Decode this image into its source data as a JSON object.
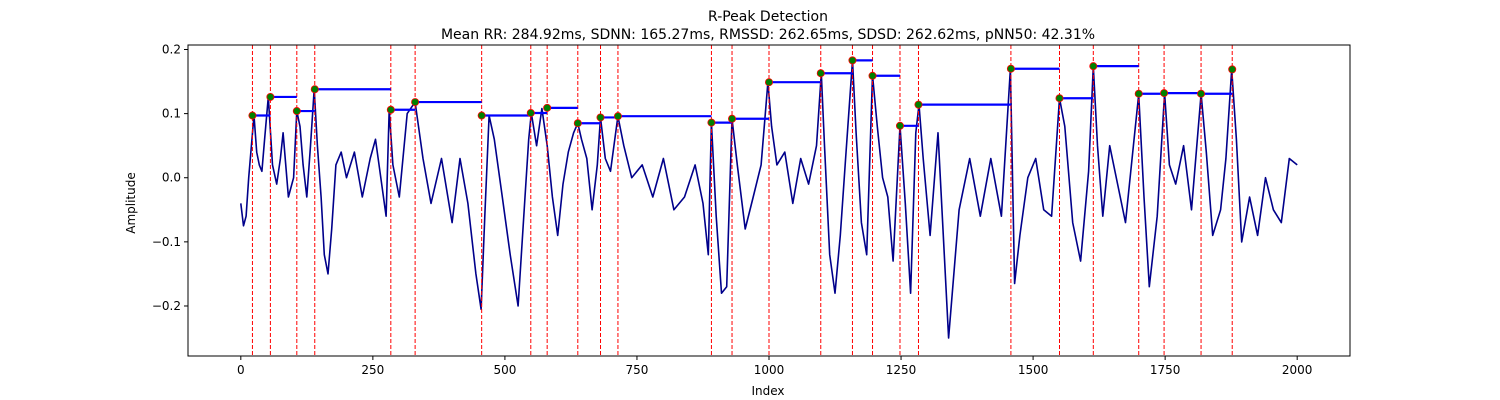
{
  "chart_data": {
    "type": "line",
    "title": "R-Peak Detection",
    "subtitle": "Mean RR: 284.92ms, SDNN: 165.27ms, RMSSD: 262.65ms, SDSD: 262.62ms, pNN50: 42.31%",
    "xlabel": "Index",
    "ylabel": "Amplitude",
    "xlim": [
      -100,
      2100
    ],
    "ylim": [
      -0.278,
      0.207
    ],
    "xticks": [
      0,
      250,
      500,
      750,
      1000,
      1250,
      1500,
      1750,
      2000
    ],
    "yticks": [
      -0.2,
      -0.1,
      0.0,
      0.1,
      0.2
    ],
    "xtick_labels": [
      "0",
      "250",
      "500",
      "750",
      "1000",
      "1250",
      "1500",
      "1750",
      "2000"
    ],
    "ytick_labels": [
      "−0.2",
      "−0.1",
      "0.0",
      "0.1",
      "0.2"
    ],
    "grid": false,
    "colors": {
      "signal": "#00008b",
      "peak_line": "#ff0000",
      "peak_marker": "#008000",
      "rr_segment": "#0000ff"
    },
    "signal": {
      "x": [
        0,
        5,
        10,
        15,
        20,
        25,
        30,
        35,
        40,
        45,
        52,
        60,
        68,
        75,
        80,
        90,
        100,
        106,
        112,
        118,
        125,
        132,
        139,
        145,
        152,
        158,
        165,
        172,
        180,
        190,
        200,
        215,
        230,
        245,
        255,
        265,
        275,
        281,
        288,
        300,
        315,
        330,
        345,
        360,
        380,
        400,
        415,
        430,
        445,
        455,
        462,
        470,
        480,
        495,
        510,
        525,
        538,
        545,
        550,
        560,
        570,
        580,
        590,
        600,
        610,
        620,
        630,
        638,
        645,
        655,
        665,
        675,
        681,
        690,
        700,
        714,
        725,
        740,
        760,
        780,
        800,
        820,
        840,
        860,
        875,
        885,
        891,
        900,
        910,
        920,
        930,
        940,
        955,
        970,
        985,
        998,
        1005,
        1015,
        1030,
        1045,
        1060,
        1075,
        1090,
        1099,
        1105,
        1115,
        1125,
        1135,
        1145,
        1158,
        1165,
        1175,
        1185,
        1196,
        1205,
        1215,
        1225,
        1235,
        1248,
        1258,
        1268,
        1278,
        1284,
        1292,
        1305,
        1320,
        1340,
        1360,
        1380,
        1400,
        1420,
        1440,
        1457,
        1465,
        1475,
        1490,
        1505,
        1520,
        1535,
        1550,
        1560,
        1575,
        1590,
        1605,
        1614,
        1622,
        1632,
        1645,
        1660,
        1675,
        1690,
        1700,
        1710,
        1720,
        1735,
        1749,
        1758,
        1770,
        1785,
        1800,
        1818,
        1828,
        1840,
        1855,
        1865,
        1876,
        1885,
        1895,
        1910,
        1925,
        1940,
        1955,
        1970,
        1985,
        2000
      ],
      "y": [
        -0.04,
        -0.075,
        -0.06,
        0.0,
        0.05,
        0.097,
        0.04,
        0.02,
        0.01,
        0.06,
        0.126,
        0.02,
        -0.01,
        0.03,
        0.07,
        -0.03,
        0.0,
        0.104,
        0.08,
        0.02,
        -0.03,
        0.05,
        0.138,
        0.05,
        -0.03,
        -0.12,
        -0.15,
        -0.08,
        0.02,
        0.04,
        0.0,
        0.04,
        -0.03,
        0.03,
        0.06,
        0.0,
        -0.06,
        0.106,
        0.02,
        -0.03,
        0.1,
        0.118,
        0.03,
        -0.04,
        0.03,
        -0.07,
        0.03,
        -0.04,
        -0.15,
        -0.205,
        -0.06,
        0.097,
        0.06,
        -0.03,
        -0.12,
        -0.2,
        -0.03,
        0.06,
        0.101,
        0.05,
        0.108,
        0.05,
        -0.03,
        -0.09,
        -0.01,
        0.04,
        0.07,
        0.085,
        0.06,
        0.03,
        -0.05,
        0.02,
        0.094,
        0.03,
        0.01,
        0.096,
        0.05,
        0.0,
        0.02,
        -0.03,
        0.03,
        -0.05,
        -0.03,
        0.02,
        -0.04,
        -0.12,
        0.086,
        -0.06,
        -0.18,
        -0.17,
        0.092,
        0.02,
        -0.08,
        -0.03,
        0.02,
        0.149,
        0.08,
        0.02,
        0.04,
        -0.04,
        0.03,
        -0.01,
        0.05,
        0.163,
        0.05,
        -0.12,
        -0.18,
        -0.09,
        0.03,
        0.183,
        0.07,
        -0.07,
        -0.12,
        0.16,
        0.08,
        0.0,
        -0.03,
        -0.13,
        0.081,
        -0.04,
        -0.18,
        0.07,
        0.114,
        0.03,
        -0.09,
        0.07,
        -0.25,
        -0.05,
        0.03,
        -0.06,
        0.03,
        -0.06,
        0.17,
        -0.165,
        -0.09,
        0.0,
        0.03,
        -0.05,
        -0.06,
        0.124,
        0.08,
        -0.07,
        -0.13,
        0.01,
        0.174,
        0.05,
        -0.06,
        0.05,
        -0.01,
        -0.07,
        0.05,
        0.13,
        -0.03,
        -0.17,
        -0.06,
        0.132,
        0.02,
        -0.01,
        0.05,
        -0.05,
        0.131,
        0.04,
        -0.09,
        -0.05,
        0.03,
        0.169,
        0.06,
        -0.1,
        -0.03,
        -0.09,
        0.0,
        -0.05,
        -0.07,
        0.03,
        0.02
      ]
    },
    "peaks": [
      {
        "x": 22,
        "y": 0.097
      },
      {
        "x": 56,
        "y": 0.126
      },
      {
        "x": 106,
        "y": 0.104
      },
      {
        "x": 140,
        "y": 0.138
      },
      {
        "x": 284,
        "y": 0.106
      },
      {
        "x": 330,
        "y": 0.118
      },
      {
        "x": 456,
        "y": 0.097
      },
      {
        "x": 549,
        "y": 0.101
      },
      {
        "x": 580,
        "y": 0.109
      },
      {
        "x": 638,
        "y": 0.085
      },
      {
        "x": 681,
        "y": 0.094
      },
      {
        "x": 714,
        "y": 0.096
      },
      {
        "x": 891,
        "y": 0.086
      },
      {
        "x": 930,
        "y": 0.092
      },
      {
        "x": 1000,
        "y": 0.149
      },
      {
        "x": 1098,
        "y": 0.163
      },
      {
        "x": 1158,
        "y": 0.183
      },
      {
        "x": 1196,
        "y": 0.159
      },
      {
        "x": 1248,
        "y": 0.081
      },
      {
        "x": 1283,
        "y": 0.114
      },
      {
        "x": 1458,
        "y": 0.17
      },
      {
        "x": 1550,
        "y": 0.124
      },
      {
        "x": 1614,
        "y": 0.174
      },
      {
        "x": 1700,
        "y": 0.131
      },
      {
        "x": 1748,
        "y": 0.132
      },
      {
        "x": 1818,
        "y": 0.131
      },
      {
        "x": 1877,
        "y": 0.169
      }
    ],
    "rr_segments": [
      {
        "x1": 22,
        "x2": 56,
        "y": 0.097
      },
      {
        "x1": 56,
        "x2": 106,
        "y": 0.126
      },
      {
        "x1": 106,
        "x2": 140,
        "y": 0.104
      },
      {
        "x1": 140,
        "x2": 284,
        "y": 0.138
      },
      {
        "x1": 284,
        "x2": 330,
        "y": 0.106
      },
      {
        "x1": 330,
        "x2": 456,
        "y": 0.118
      },
      {
        "x1": 456,
        "x2": 549,
        "y": 0.097
      },
      {
        "x1": 549,
        "x2": 580,
        "y": 0.101
      },
      {
        "x1": 580,
        "x2": 638,
        "y": 0.109
      },
      {
        "x1": 638,
        "x2": 681,
        "y": 0.085
      },
      {
        "x1": 681,
        "x2": 714,
        "y": 0.094
      },
      {
        "x1": 714,
        "x2": 891,
        "y": 0.096
      },
      {
        "x1": 891,
        "x2": 930,
        "y": 0.086
      },
      {
        "x1": 930,
        "x2": 1000,
        "y": 0.092
      },
      {
        "x1": 1000,
        "x2": 1098,
        "y": 0.149
      },
      {
        "x1": 1098,
        "x2": 1158,
        "y": 0.163
      },
      {
        "x1": 1158,
        "x2": 1196,
        "y": 0.183
      },
      {
        "x1": 1196,
        "x2": 1248,
        "y": 0.159
      },
      {
        "x1": 1248,
        "x2": 1283,
        "y": 0.081
      },
      {
        "x1": 1283,
        "x2": 1458,
        "y": 0.114
      },
      {
        "x1": 1458,
        "x2": 1550,
        "y": 0.17
      },
      {
        "x1": 1550,
        "x2": 1614,
        "y": 0.124
      },
      {
        "x1": 1614,
        "x2": 1700,
        "y": 0.174
      },
      {
        "x1": 1700,
        "x2": 1748,
        "y": 0.131
      },
      {
        "x1": 1748,
        "x2": 1818,
        "y": 0.132
      },
      {
        "x1": 1818,
        "x2": 1877,
        "y": 0.131
      }
    ]
  }
}
